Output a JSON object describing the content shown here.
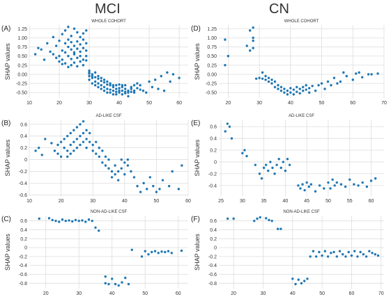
{
  "figure": {
    "mci_title": "MCI",
    "cn_title": "CN"
  },
  "chart_data": [
    {
      "panel": "A",
      "type": "scatter",
      "title": "WHOLE COHORT",
      "ylabel": "SHAP values",
      "xlim": [
        10,
        63
      ],
      "ylim": [
        -0.65,
        1.35
      ],
      "xticks": [
        10,
        20,
        30,
        40,
        50,
        60
      ],
      "yticks": [
        -0.5,
        -0.25,
        0.0,
        0.25,
        0.5,
        0.75,
        1.0,
        1.25
      ],
      "ytick_labels": [
        "-0.50",
        "-0.25",
        "0.00",
        "0.25",
        "0.50",
        "0.75",
        "1.00",
        "1.25"
      ],
      "x": [
        12,
        13,
        14,
        15,
        16,
        17,
        18,
        18,
        19,
        19,
        20,
        20,
        20,
        21,
        21,
        21,
        21,
        22,
        22,
        22,
        22,
        23,
        23,
        23,
        23,
        23,
        24,
        24,
        24,
        24,
        24,
        25,
        25,
        25,
        25,
        25,
        26,
        26,
        26,
        26,
        26,
        27,
        27,
        27,
        27,
        27,
        28,
        28,
        28,
        28,
        28,
        29,
        29,
        29,
        29,
        29,
        30,
        30,
        30,
        30,
        30,
        31,
        31,
        31,
        31,
        32,
        32,
        32,
        32,
        33,
        33,
        33,
        33,
        34,
        34,
        34,
        34,
        35,
        35,
        35,
        35,
        36,
        36,
        36,
        36,
        37,
        37,
        37,
        37,
        38,
        38,
        38,
        38,
        39,
        39,
        39,
        39,
        40,
        40,
        40,
        40,
        41,
        41,
        41,
        41,
        42,
        42,
        42,
        42,
        43,
        43,
        43,
        44,
        44,
        44,
        45,
        45,
        45,
        46,
        46,
        47,
        47,
        48,
        49,
        50,
        51,
        52,
        53,
        54,
        55,
        56,
        57,
        58,
        60
      ],
      "y": [
        0.55,
        0.72,
        0.68,
        0.4,
        0.85,
        0.62,
        1.02,
        0.55,
        0.45,
        0.78,
        0.5,
        0.92,
        0.35,
        0.65,
        0.28,
        1.1,
        0.4,
        0.6,
        0.85,
        0.3,
        1.2,
        1.3,
        0.5,
        0.75,
        0.2,
        0.95,
        0.42,
        0.68,
        0.88,
        0.25,
        1.05,
        0.55,
        0.78,
        0.32,
        1.25,
        0.6,
        0.9,
        0.45,
        0.7,
        0.22,
        1.15,
        0.5,
        0.82,
        0.35,
        1.02,
        0.62,
        0.95,
        0.4,
        0.72,
        0.25,
        1.12,
        0.85,
        0.5,
        0.65,
        1.2,
        0.38,
        0.1,
        -0.05,
        0.02,
        -0.15,
        0.05,
        -0.1,
        0.0,
        -0.25,
        -0.05,
        -0.2,
        -0.08,
        -0.3,
        0.05,
        -0.12,
        -0.25,
        -0.35,
        -0.05,
        -0.18,
        -0.3,
        -0.4,
        -0.1,
        -0.22,
        -0.35,
        -0.45,
        -0.15,
        -0.28,
        -0.4,
        -0.5,
        -0.2,
        -0.3,
        -0.42,
        -0.5,
        -0.25,
        -0.35,
        -0.45,
        -0.55,
        -0.3,
        -0.4,
        -0.48,
        -0.55,
        -0.3,
        -0.38,
        -0.45,
        -0.5,
        -0.28,
        -0.35,
        -0.45,
        -0.55,
        -0.3,
        -0.4,
        -0.48,
        -0.52,
        -0.3,
        -0.45,
        -0.5,
        -0.6,
        -0.4,
        -0.48,
        -0.35,
        -0.3,
        -0.45,
        -0.5,
        -0.38,
        -0.25,
        -0.42,
        -0.3,
        -0.45,
        -0.5,
        -0.2,
        -0.35,
        -0.15,
        -0.4,
        -0.05,
        -0.45,
        0.05,
        -0.2,
        0.0,
        -0.1
      ],
      "point_color": "#1f77b4"
    },
    {
      "panel": "B",
      "type": "scatter",
      "title": "AD-LIKE CSF",
      "ylabel": "SHAP values",
      "xlim": [
        10,
        60
      ],
      "ylim": [
        -0.62,
        0.68
      ],
      "xticks": [
        10,
        20,
        30,
        40,
        50,
        60
      ],
      "yticks": [
        -0.6,
        -0.4,
        -0.2,
        0.0,
        0.2,
        0.4,
        0.6
      ],
      "ytick_labels": [
        "-0.6",
        "-0.4",
        "-0.2",
        "0",
        "0.2",
        "0.4",
        "0.6"
      ],
      "x": [
        12,
        13,
        14,
        15,
        17,
        18,
        19,
        19,
        20,
        20,
        21,
        21,
        22,
        22,
        22,
        23,
        23,
        23,
        24,
        24,
        24,
        25,
        25,
        25,
        26,
        26,
        26,
        27,
        27,
        27,
        28,
        28,
        28,
        29,
        29,
        30,
        30,
        31,
        31,
        32,
        32,
        33,
        33,
        34,
        34,
        35,
        35,
        36,
        36,
        37,
        37,
        38,
        38,
        39,
        39,
        40,
        40,
        41,
        41,
        42,
        43,
        44,
        45,
        46,
        47,
        48,
        49,
        50,
        51,
        52,
        54,
        55,
        57,
        58
      ],
      "y": [
        0.15,
        0.2,
        0.08,
        0.35,
        0.28,
        0.15,
        0.25,
        0.1,
        0.3,
        0.05,
        0.2,
        0.35,
        0.15,
        0.4,
        0.05,
        0.25,
        0.45,
        0.1,
        0.3,
        0.5,
        0.15,
        0.35,
        0.55,
        0.2,
        0.4,
        0.6,
        0.25,
        0.45,
        0.65,
        0.3,
        0.35,
        0.5,
        0.2,
        0.3,
        0.45,
        0.25,
        0.15,
        0.1,
        0.3,
        0.05,
        0.2,
        -0.05,
        0.15,
        -0.1,
        0.05,
        -0.15,
        0.0,
        -0.2,
        -0.3,
        -0.25,
        -0.1,
        -0.2,
        -0.35,
        -0.15,
        0.0,
        -0.05,
        -0.25,
        0.0,
        -0.1,
        -0.2,
        -0.3,
        -0.45,
        -0.55,
        -0.4,
        -0.5,
        -0.3,
        -0.45,
        -0.55,
        -0.5,
        -0.35,
        -0.45,
        -0.2,
        -0.5,
        -0.1
      ],
      "point_color": "#1f77b4"
    },
    {
      "panel": "C",
      "type": "scatter",
      "title": "NON-AD-LIKE CSF",
      "ylabel": "SHAP values",
      "xlim": [
        15,
        63
      ],
      "ylim": [
        -0.92,
        0.72
      ],
      "xticks": [
        20,
        30,
        40,
        50,
        60
      ],
      "yticks": [
        -0.8,
        -0.6,
        -0.4,
        -0.2,
        0.0,
        0.2,
        0.4,
        0.6
      ],
      "ytick_labels": [
        "-0.8",
        "-0.6",
        "-0.4",
        "-0.2",
        "0",
        "0.2",
        "0.4",
        "0.6"
      ],
      "x": [
        18,
        21,
        22,
        23,
        24,
        25,
        26,
        27,
        28,
        29,
        30,
        31,
        32,
        33,
        34,
        35,
        36,
        38,
        38,
        39,
        40,
        41,
        42,
        43,
        44,
        45,
        46,
        49,
        50,
        51,
        52,
        53,
        54,
        55,
        56,
        57,
        58,
        61
      ],
      "y": [
        0.65,
        0.66,
        0.62,
        0.6,
        0.58,
        0.63,
        0.6,
        0.61,
        0.59,
        0.62,
        0.6,
        0.61,
        0.58,
        0.63,
        0.6,
        0.45,
        0.38,
        -0.65,
        -0.8,
        -0.82,
        -0.7,
        -0.82,
        -0.85,
        -0.78,
        -0.68,
        -0.82,
        -0.05,
        -0.2,
        -0.08,
        -0.15,
        -0.1,
        -0.08,
        -0.12,
        -0.09,
        -0.1,
        -0.08,
        -0.12,
        -0.07
      ],
      "point_color": "#1f77b4"
    },
    {
      "panel": "D",
      "type": "scatter",
      "title": "WHOLE COHORT",
      "ylabel": "SHAP values",
      "xlim": [
        17,
        70
      ],
      "ylim": [
        -0.65,
        1.35
      ],
      "xticks": [
        20,
        30,
        40,
        50,
        60,
        70
      ],
      "yticks": [
        -0.5,
        -0.25,
        0.0,
        0.25,
        0.5,
        0.75,
        1.0,
        1.25
      ],
      "ytick_labels": [
        "-0.50",
        "-0.25",
        "0.00",
        "0.25",
        "0.50",
        "0.75",
        "1.00",
        "1.25"
      ],
      "x": [
        19,
        19,
        20,
        26,
        27,
        27,
        28,
        28,
        28,
        28,
        29,
        30,
        31,
        31,
        32,
        32,
        33,
        33,
        34,
        34,
        35,
        35,
        36,
        36,
        37,
        37,
        38,
        38,
        39,
        39,
        40,
        40,
        41,
        41,
        42,
        42,
        43,
        43,
        44,
        44,
        45,
        45,
        46,
        46,
        47,
        48,
        49,
        50,
        51,
        52,
        53,
        54,
        55,
        56,
        57,
        58,
        60,
        61,
        62,
        63,
        65,
        66,
        68
      ],
      "y": [
        0.95,
        0.25,
        0.5,
        0.78,
        1.2,
        0.65,
        1.28,
        1.0,
        0.72,
        0.92,
        -0.12,
        -0.1,
        0.05,
        -0.12,
        -0.05,
        -0.15,
        -0.1,
        -0.2,
        -0.15,
        -0.25,
        -0.2,
        -0.35,
        -0.3,
        -0.4,
        -0.35,
        -0.45,
        -0.4,
        -0.5,
        -0.45,
        -0.55,
        -0.38,
        -0.5,
        -0.42,
        -0.55,
        -0.35,
        -0.48,
        -0.4,
        -0.52,
        -0.35,
        -0.45,
        -0.3,
        -0.42,
        -0.38,
        -0.5,
        -0.32,
        -0.45,
        -0.3,
        -0.25,
        -0.4,
        -0.2,
        -0.3,
        -0.1,
        -0.25,
        -0.2,
        0.05,
        -0.05,
        -0.15,
        0.02,
        0.05,
        -0.08,
        0.0,
        0.0,
        0.02
      ],
      "point_color": "#1f77b4"
    },
    {
      "panel": "E",
      "type": "scatter",
      "title": "AD-LIKE CSF",
      "ylabel": "SHAP values",
      "xlim": [
        24.5,
        63
      ],
      "ylim": [
        -0.58,
        0.72
      ],
      "xticks": [
        25,
        30,
        35,
        40,
        45,
        50,
        55,
        60
      ],
      "yticks": [
        -0.4,
        -0.2,
        0.0,
        0.2,
        0.4,
        0.6
      ],
      "ytick_labels": [
        "-0.4",
        "-0.2",
        "0",
        "0.2",
        "0.4",
        "0.6"
      ],
      "x": [
        26,
        26.5,
        27,
        27.5,
        30,
        30.5,
        31,
        33,
        34,
        34.5,
        35,
        35.5,
        36,
        36.5,
        37,
        37.5,
        38,
        38.5,
        39,
        39.5,
        40,
        40.5,
        41,
        43,
        43.5,
        44,
        44.5,
        45,
        45.5,
        46,
        47,
        48,
        49,
        50,
        50.5,
        51,
        51.5,
        52,
        53,
        54,
        55,
        56,
        57,
        58,
        59,
        60,
        61
      ],
      "y": [
        0.52,
        0.65,
        0.6,
        0.4,
        0.15,
        0.2,
        0.1,
        -0.05,
        -0.2,
        -0.28,
        -0.1,
        -0.05,
        -0.15,
        0.0,
        -0.1,
        -0.2,
        -0.05,
        0.05,
        -0.1,
        0.0,
        -0.15,
        0.05,
        -0.05,
        -0.4,
        -0.45,
        -0.38,
        -0.48,
        -0.35,
        -0.42,
        -0.38,
        -0.5,
        -0.4,
        -0.45,
        -0.35,
        -0.45,
        -0.3,
        -0.4,
        -0.35,
        -0.38,
        -0.42,
        -0.3,
        -0.38,
        -0.4,
        -0.35,
        -0.42,
        -0.32,
        -0.28
      ],
      "point_color": "#1f77b4"
    },
    {
      "panel": "F",
      "type": "scatter",
      "title": "NON-AD-LIKE CSF",
      "ylabel": "SHAP values",
      "xlim": [
        15,
        71
      ],
      "ylim": [
        -0.92,
        0.72
      ],
      "xticks": [
        20,
        30,
        40,
        50,
        60,
        70
      ],
      "yticks": [
        -0.8,
        -0.6,
        -0.4,
        -0.2,
        0.0,
        0.2,
        0.4,
        0.6
      ],
      "ytick_labels": [
        "-0.8",
        "-0.6",
        "-0.4",
        "-0.2",
        "0",
        "0.2",
        "0.4",
        "0.6"
      ],
      "x": [
        18,
        20,
        27,
        28,
        29,
        31,
        32,
        33,
        35,
        36,
        40,
        41,
        42,
        43,
        44,
        45,
        46,
        47,
        48,
        49,
        50,
        51,
        52,
        53,
        54,
        55,
        56,
        57,
        58,
        59,
        60,
        61,
        62,
        63,
        64,
        65,
        66,
        67,
        68,
        69
      ],
      "y": [
        0.65,
        0.65,
        0.6,
        0.65,
        0.68,
        0.66,
        0.62,
        0.6,
        0.42,
        0.42,
        -0.7,
        -0.82,
        -0.72,
        -0.8,
        -0.75,
        -0.7,
        -0.2,
        -0.08,
        -0.2,
        -0.1,
        -0.18,
        -0.08,
        -0.2,
        -0.12,
        -0.1,
        -0.2,
        -0.08,
        -0.15,
        -0.2,
        -0.1,
        -0.18,
        -0.08,
        -0.2,
        -0.1,
        -0.15,
        -0.2,
        -0.08,
        -0.12,
        -0.15,
        -0.18
      ],
      "point_color": "#1f77b4"
    }
  ]
}
